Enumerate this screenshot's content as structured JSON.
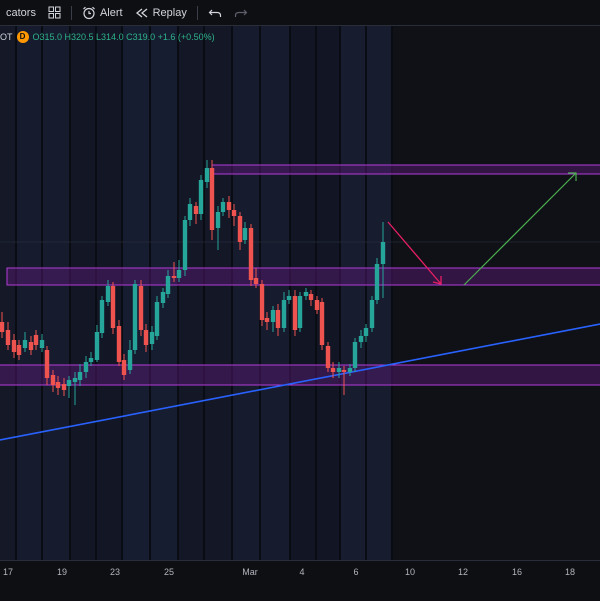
{
  "toolbar": {
    "indicators_label": "cators",
    "alert_label": "Alert",
    "replay_label": "Replay"
  },
  "legend": {
    "symbol": "OT",
    "interval_badge": "D",
    "ohlc": "O315.0 H320.5 L314.0 C319.0 +1.6 (+0.50%)"
  },
  "x_axis": {
    "labels": [
      "17",
      "19",
      "23",
      "25",
      "Mar",
      "4",
      "6",
      "10",
      "12",
      "16",
      "18"
    ]
  },
  "colors": {
    "up": "#26a69a",
    "down": "#ef5350",
    "zone_fill": "#6a1b9a",
    "zone_border": "#b23cd8",
    "trendline": "#2962ff",
    "arrow_down": "#e91e63",
    "arrow_up": "#4caf50"
  },
  "chart_data": {
    "type": "candlestick",
    "last_close": 319.0,
    "last_change": 1.6,
    "last_change_pct": 0.5
  }
}
